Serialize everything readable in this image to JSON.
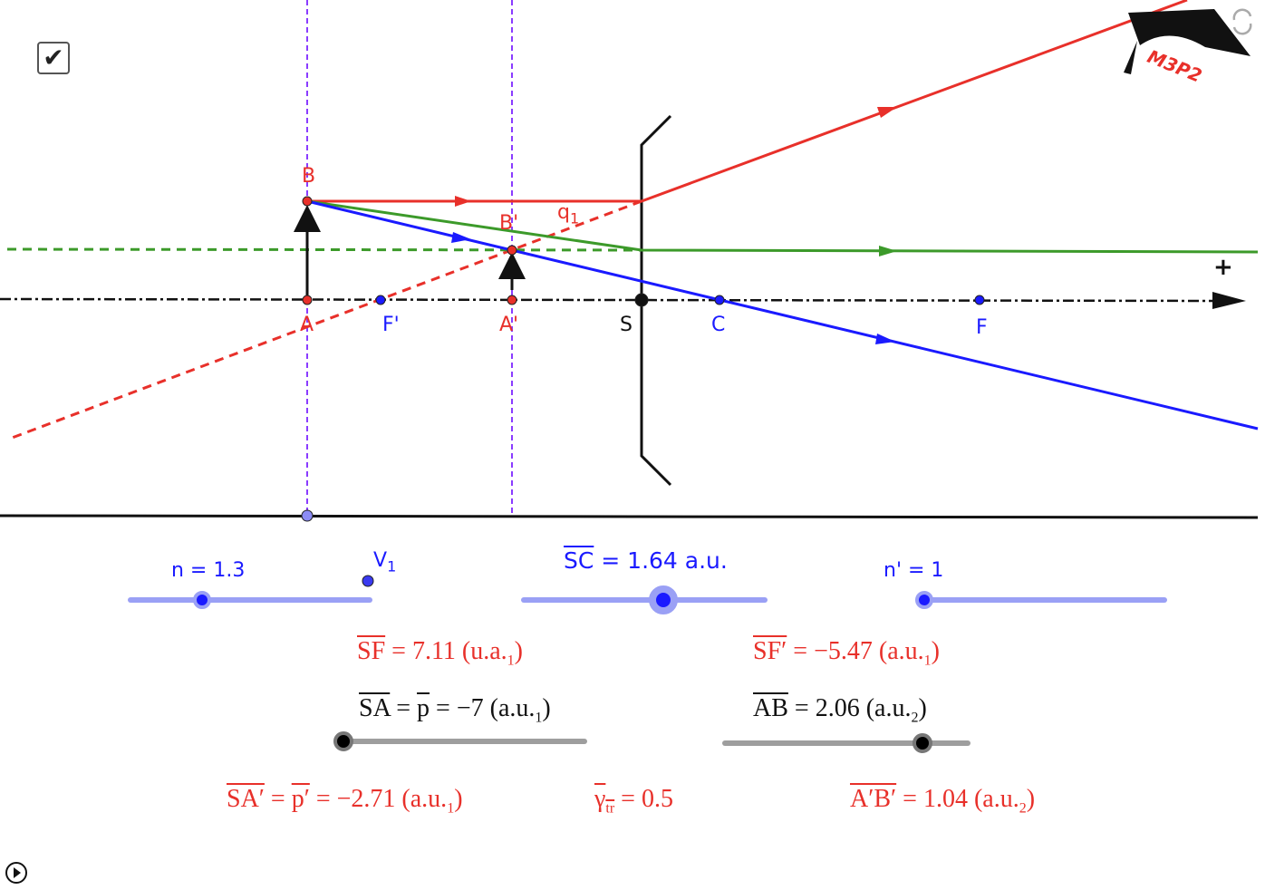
{
  "checkbox": {
    "checked": true
  },
  "points": {
    "A": "A",
    "B": "B",
    "A_prime": "A'",
    "B_prime": "B'",
    "F_prime": "F'",
    "F": "F",
    "S": "S",
    "C": "C",
    "q1": "q",
    "q1_sub": "1",
    "plus": "+",
    "V1": "V",
    "V1_sub": "1"
  },
  "logo": {
    "text": "M3P2"
  },
  "sliders": {
    "n": {
      "label": "n = 1.3",
      "value": 1.3
    },
    "sc": {
      "lhs": "SC",
      "rhs": " = 1.64 a.u.",
      "value": 1.64
    },
    "n_prime": {
      "label": "n' = 1",
      "value": 1
    },
    "sa": {
      "lhs": "SA",
      "mid": " = ",
      "p": "p",
      "rhs": " = −7 (a.u.",
      "sub": "1",
      "close": ")",
      "value": -7
    },
    "ab": {
      "lhs": "AB",
      "rhs": " =  2.06 (a.u.",
      "sub": "2",
      "close": ")",
      "value": 2.06
    }
  },
  "results": {
    "sf": {
      "lhs": "SF",
      "rhs": " = 7.11 (u.a.",
      "sub": "1",
      "close": ")"
    },
    "sf_prime": {
      "lhs": "SF′",
      "rhs": " = −5.47 (a.u.",
      "sub": "1",
      "close": ")"
    },
    "sa_prime": {
      "lhs": "SA′",
      "mid": " = ",
      "p": "p′",
      "rhs": " = −2.71 (a.u.",
      "sub": "1",
      "close": ")"
    },
    "gamma": {
      "lhs": "γ",
      "sub": "tr",
      "rhs": " = 0.5"
    },
    "ab_prime": {
      "lhs": "A′B′",
      "rhs": " = 1.04 (a.u.",
      "sub": "2",
      "close": ")"
    }
  },
  "colors": {
    "red": "#e8302a",
    "blue": "#1a1aff",
    "green": "#3c9a2a",
    "purple": "#8a3cff",
    "slider": "#9aa0f5"
  }
}
